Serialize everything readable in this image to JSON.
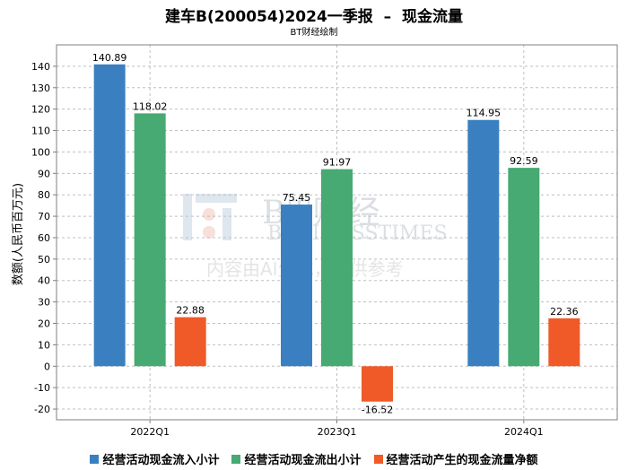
{
  "chart_data": {
    "type": "bar",
    "title": "建车B(200054)2024一季报  –  现金流量",
    "subtitle": "BT财经绘制",
    "xlabel": "",
    "ylabel": "数额(人民币百万元)",
    "categories": [
      "2022Q1",
      "2023Q1",
      "2024Q1"
    ],
    "ylim": [
      -25,
      150
    ],
    "yticks": [
      -20,
      -10,
      0,
      10,
      20,
      30,
      40,
      50,
      60,
      70,
      80,
      90,
      100,
      110,
      120,
      130,
      140
    ],
    "grid": true,
    "legend_position": "bottom",
    "series": [
      {
        "name": "经营活动现金流入小计",
        "color": "#3a80c0",
        "values": [
          140.89,
          75.45,
          114.95
        ],
        "labels": [
          "140.89",
          "75.45",
          "114.95"
        ]
      },
      {
        "name": "经营活动现金流出小计",
        "color": "#46aa72",
        "values": [
          118.02,
          91.97,
          92.59
        ],
        "labels": [
          "118.02",
          "91.97",
          "92.59"
        ]
      },
      {
        "name": "经营活动产生的现金流量净额",
        "color": "#f05a28",
        "values": [
          22.88,
          -16.52,
          22.36
        ],
        "labels": [
          "22.88",
          "-16.52",
          "22.36"
        ]
      }
    ]
  },
  "watermark": {
    "brand": "BT财经",
    "brand_en": "BUSINESSTIMES",
    "note": "内容由AI生成，仅供参考"
  }
}
